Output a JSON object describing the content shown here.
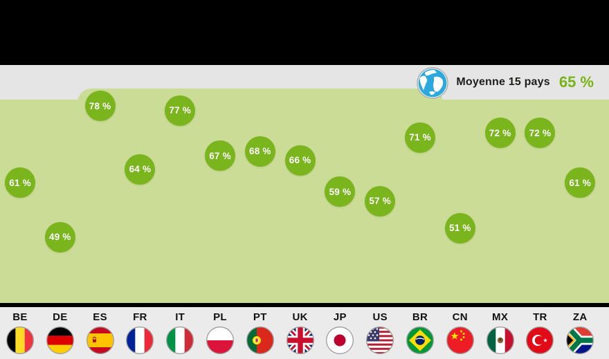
{
  "banner": {
    "bg": "#000000"
  },
  "average": {
    "icon": "globe",
    "label": "Moyenne 15 pays",
    "value_label": "65 %",
    "value": 65
  },
  "chart_data": {
    "type": "scatter",
    "title": "",
    "unit": "%",
    "categories": [
      "BE",
      "DE",
      "ES",
      "FR",
      "IT",
      "PL",
      "PT",
      "UK",
      "JP",
      "US",
      "BR",
      "CN",
      "MX",
      "TR",
      "ZA"
    ],
    "values": [
      61,
      49,
      78,
      64,
      77,
      67,
      68,
      66,
      59,
      57,
      71,
      51,
      72,
      72,
      61
    ],
    "average_label": "Moyenne 15 pays",
    "average_value": 65,
    "ylim": [
      45,
      82
    ],
    "grid": false,
    "legend_position": "top-right",
    "marker": "circle-with-value-label"
  },
  "countries": [
    {
      "code": "BE",
      "value": 61,
      "value_label": "61 %"
    },
    {
      "code": "DE",
      "value": 49,
      "value_label": "49 %"
    },
    {
      "code": "ES",
      "value": 78,
      "value_label": "78 %"
    },
    {
      "code": "FR",
      "value": 64,
      "value_label": "64 %"
    },
    {
      "code": "IT",
      "value": 77,
      "value_label": "77 %"
    },
    {
      "code": "PL",
      "value": 67,
      "value_label": "67 %"
    },
    {
      "code": "PT",
      "value": 68,
      "value_label": "68 %"
    },
    {
      "code": "UK",
      "value": 66,
      "value_label": "66 %"
    },
    {
      "code": "JP",
      "value": 59,
      "value_label": "59 %"
    },
    {
      "code": "US",
      "value": 57,
      "value_label": "57 %"
    },
    {
      "code": "BR",
      "value": 71,
      "value_label": "71 %"
    },
    {
      "code": "CN",
      "value": 51,
      "value_label": "51 %"
    },
    {
      "code": "MX",
      "value": 72,
      "value_label": "72 %"
    },
    {
      "code": "TR",
      "value": 72,
      "value_label": "72 %"
    },
    {
      "code": "ZA",
      "value": 61,
      "value_label": "61 %"
    }
  ],
  "colors": {
    "bubble_green": "#7ab51e",
    "chart_area_green": "#cbdc96",
    "band_gray": "#e5e5e5",
    "strip_gray": "#ebebeb",
    "accent_green": "#76b416",
    "text_dark": "#1d1d1b",
    "banner_black": "#000000",
    "globe_blue": "#2ba9df"
  }
}
